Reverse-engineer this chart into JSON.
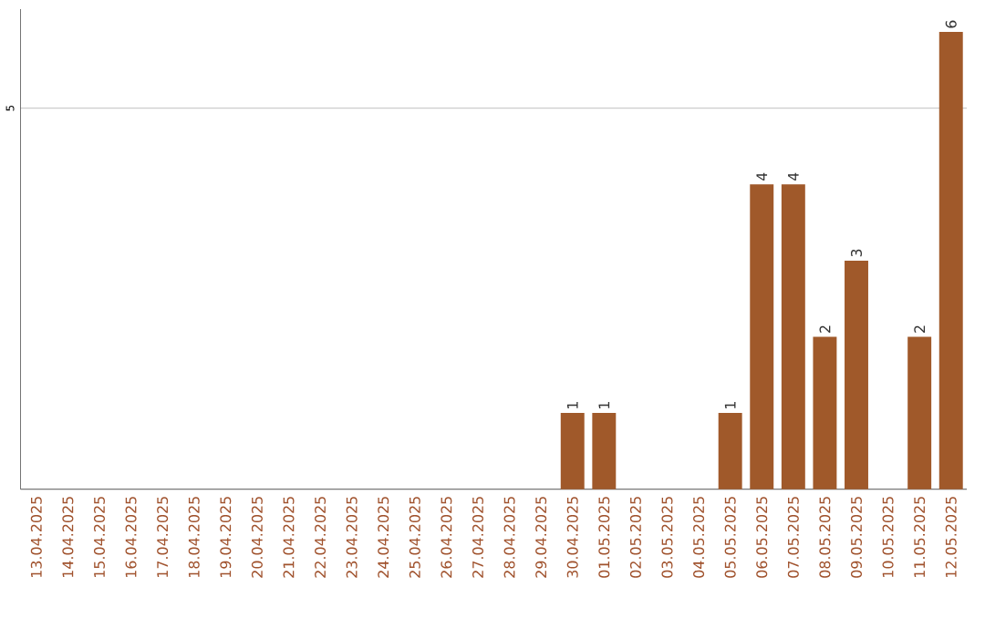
{
  "chart_data": {
    "type": "bar",
    "categories": [
      "13.04.2025",
      "14.04.2025",
      "15.04.2025",
      "16.04.2025",
      "17.04.2025",
      "18.04.2025",
      "19.04.2025",
      "20.04.2025",
      "21.04.2025",
      "22.04.2025",
      "23.04.2025",
      "24.04.2025",
      "25.04.2025",
      "26.04.2025",
      "27.04.2025",
      "28.04.2025",
      "29.04.2025",
      "30.04.2025",
      "01.05.2025",
      "02.05.2025",
      "03.05.2025",
      "04.05.2025",
      "05.05.2025",
      "06.05.2025",
      "07.05.2025",
      "08.05.2025",
      "09.05.2025",
      "10.05.2025",
      "11.05.2025",
      "12.05.2025"
    ],
    "values": [
      null,
      null,
      null,
      null,
      null,
      null,
      null,
      null,
      null,
      null,
      null,
      null,
      null,
      null,
      null,
      null,
      null,
      1,
      1,
      null,
      null,
      null,
      1,
      4,
      4,
      2,
      3,
      null,
      2,
      6
    ],
    "data_labels": true,
    "color": "#a0592a",
    "ylim": [
      0,
      6.3
    ],
    "yticks": [
      {
        "value": 0,
        "label": null
      },
      {
        "value": 5,
        "label": "5"
      }
    ],
    "grid": "y"
  }
}
